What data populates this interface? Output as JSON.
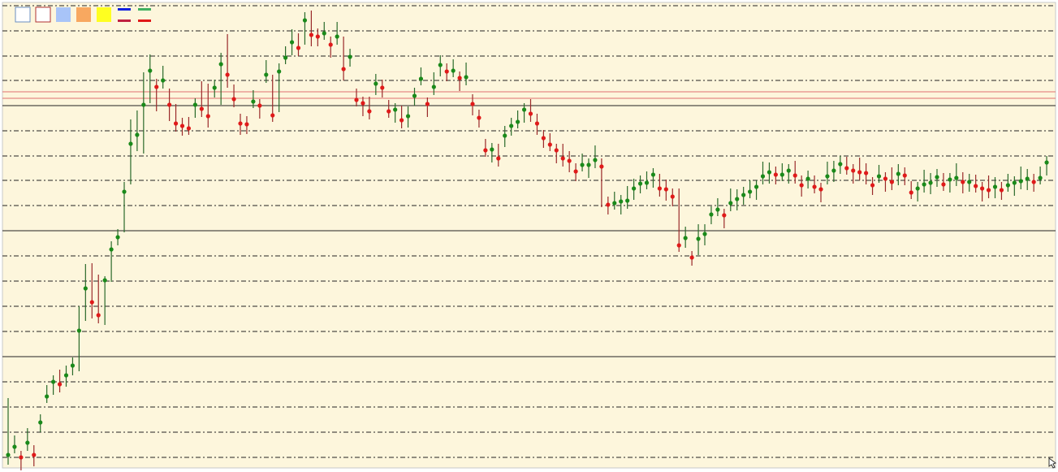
{
  "chart_data": {
    "type": "bar-ohlc",
    "ylim": [
      0,
      580
    ],
    "yticks": [
      573,
      542,
      511,
      481,
      450,
      419,
      388,
      358,
      327,
      296,
      265,
      234,
      203,
      172,
      141,
      110,
      79,
      48,
      17
    ],
    "major_yticks": [
      450,
      296,
      141
    ],
    "grid": true,
    "levels": [
      467,
      459
    ],
    "level_color": "#e07070",
    "up_color": "#1a8a1a",
    "down_color": "#e01a1a",
    "close": [
      20,
      30,
      17,
      35,
      20,
      60,
      92,
      110,
      107,
      118,
      130,
      173,
      225,
      208,
      192,
      235,
      273,
      288,
      344,
      403,
      414,
      451,
      493,
      473,
      481,
      451,
      428,
      425,
      422,
      451,
      446,
      437,
      472,
      501,
      488,
      458,
      428,
      427,
      455,
      450,
      488,
      438,
      492,
      509,
      528,
      521,
      555,
      537,
      535,
      539,
      525,
      535,
      495,
      510,
      457,
      453,
      443,
      477,
      472,
      443,
      445,
      432,
      437,
      462,
      483,
      452,
      473,
      500,
      492,
      493,
      484,
      485,
      452,
      435,
      395,
      396,
      385,
      413,
      425,
      430,
      445,
      440,
      428,
      410,
      402,
      395,
      385,
      382,
      369,
      377,
      377,
      383,
      375,
      328,
      330,
      332,
      333,
      348,
      354,
      355,
      365,
      348,
      347,
      338,
      278,
      287,
      263,
      286,
      292,
      316,
      322,
      315,
      330,
      335,
      340,
      344,
      350,
      363,
      368,
      365,
      365,
      370,
      364,
      352,
      360,
      350,
      347,
      363,
      370,
      378,
      373,
      370,
      368,
      367,
      352,
      363,
      360,
      356,
      366,
      364,
      343,
      348,
      353,
      355,
      362,
      353,
      359,
      361,
      356,
      356,
      351,
      348,
      346,
      350,
      346,
      352,
      355,
      357,
      360,
      356,
      361,
      380
    ],
    "high": [
      90,
      44,
      25,
      53,
      32,
      70,
      106,
      118,
      125,
      130,
      140,
      203,
      255,
      256,
      242,
      240,
      283,
      298,
      356,
      433,
      444,
      491,
      513,
      483,
      499,
      471,
      452,
      435,
      436,
      459,
      480,
      477,
      482,
      515,
      538,
      476,
      440,
      437,
      469,
      458,
      506,
      488,
      502,
      523,
      544,
      539,
      565,
      567,
      545,
      553,
      535,
      553,
      535,
      520,
      471,
      461,
      461,
      489,
      482,
      457,
      453,
      450,
      449,
      472,
      497,
      460,
      491,
      512,
      502,
      507,
      492,
      503,
      464,
      445,
      409,
      404,
      403,
      425,
      435,
      444,
      453,
      458,
      440,
      420,
      416,
      403,
      403,
      394,
      379,
      391,
      385,
      401,
      385,
      338,
      344,
      340,
      351,
      360,
      364,
      369,
      373,
      366,
      359,
      348,
      348,
      301,
      271,
      304,
      304,
      326,
      336,
      323,
      348,
      347,
      350,
      358,
      358,
      381,
      380,
      375,
      379,
      378,
      382,
      364,
      370,
      364,
      355,
      381,
      382,
      388,
      387,
      378,
      386,
      379,
      362,
      377,
      368,
      374,
      378,
      374,
      357,
      356,
      371,
      367,
      372,
      367,
      367,
      379,
      368,
      366,
      365,
      356,
      364,
      362,
      356,
      366,
      363,
      375,
      372,
      366,
      375,
      388
    ],
    "low": [
      8,
      22,
      1,
      25,
      6,
      48,
      84,
      94,
      97,
      104,
      118,
      123,
      185,
      188,
      182,
      180,
      233,
      278,
      294,
      353,
      394,
      391,
      453,
      443,
      471,
      431,
      418,
      413,
      414,
      435,
      436,
      423,
      460,
      451,
      472,
      448,
      414,
      415,
      447,
      434,
      478,
      430,
      442,
      501,
      512,
      511,
      525,
      523,
      523,
      531,
      509,
      525,
      481,
      498,
      449,
      437,
      433,
      463,
      460,
      435,
      429,
      422,
      423,
      450,
      475,
      436,
      463,
      486,
      480,
      485,
      468,
      475,
      438,
      423,
      387,
      380,
      375,
      399,
      413,
      422,
      429,
      430,
      414,
      398,
      394,
      379,
      375,
      368,
      357,
      369,
      361,
      373,
      325,
      316,
      322,
      316,
      323,
      334,
      342,
      347,
      349,
      338,
      333,
      326,
      270,
      275,
      253,
      266,
      278,
      304,
      314,
      299,
      320,
      321,
      328,
      336,
      334,
      353,
      354,
      353,
      357,
      354,
      354,
      338,
      348,
      342,
      331,
      353,
      356,
      366,
      365,
      354,
      358,
      353,
      340,
      355,
      344,
      346,
      352,
      352,
      335,
      332,
      343,
      341,
      350,
      345,
      343,
      351,
      342,
      344,
      343,
      332,
      336,
      336,
      334,
      344,
      339,
      347,
      346,
      344,
      353,
      364
    ]
  }
}
